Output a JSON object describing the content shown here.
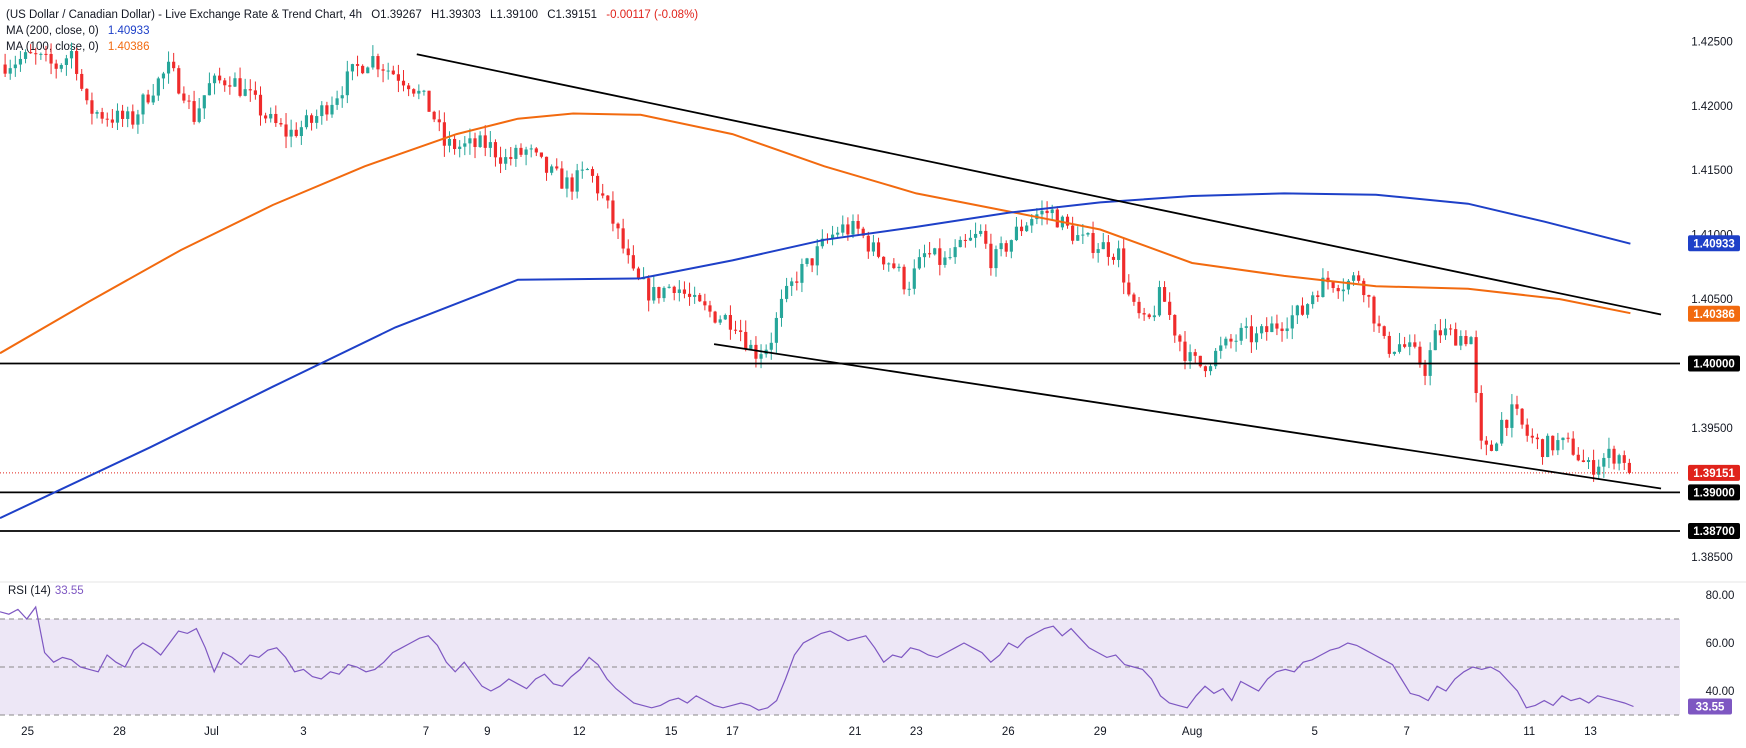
{
  "legend": {
    "symbol": "(US Dollar / Canadian Dollar) - Live Exchange Rate & Trend Chart, 4h",
    "open": "O1.39267",
    "high": "H1.39303",
    "low": "L1.39100",
    "close": "C1.39151",
    "change": "-0.00117 (-0.08%)",
    "ma200_label": "MA (200, close, 0)",
    "ma200_value": "1.40933",
    "ma100_label": "MA (100, close, 0)",
    "ma100_value": "1.40386"
  },
  "rsi_legend": {
    "label": "RSI (14)",
    "value": "33.55"
  },
  "colors": {
    "up": "#26a69a",
    "down": "#ef2b2b",
    "ma200": "#1e40c8",
    "ma100": "#f26a0f",
    "rsi": "#7e57c2",
    "rsi_band": "#ede7f6",
    "trend": "#000000",
    "last_price": "#e0231b"
  },
  "chart_data": {
    "type": "candlestick",
    "y_range": [
      1.3832,
      1.4265
    ],
    "y_ticks": [
      {
        "value": 1.425,
        "label": "1.42500"
      },
      {
        "value": 1.42,
        "label": "1.42000"
      },
      {
        "value": 1.415,
        "label": "1.41500"
      },
      {
        "value": 1.41,
        "label": "1.41000"
      },
      {
        "value": 1.405,
        "label": "1.40500"
      },
      {
        "value": 1.4,
        "label": "1.40000"
      },
      {
        "value": 1.395,
        "label": "1.39500"
      },
      {
        "value": 1.39,
        "label": "1.39000"
      },
      {
        "value": 1.385,
        "label": "1.38500"
      }
    ],
    "x_ticks": [
      {
        "day": 0,
        "label": "25"
      },
      {
        "day": 3,
        "label": "28"
      },
      {
        "day": 6,
        "label": "Jul"
      },
      {
        "day": 9,
        "label": "3"
      },
      {
        "day": 13,
        "label": "7"
      },
      {
        "day": 15,
        "label": "9"
      },
      {
        "day": 18,
        "label": "12"
      },
      {
        "day": 21,
        "label": "15"
      },
      {
        "day": 23,
        "label": "17"
      },
      {
        "day": 27,
        "label": "21"
      },
      {
        "day": 29,
        "label": "23"
      },
      {
        "day": 32,
        "label": "26"
      },
      {
        "day": 35,
        "label": "29"
      },
      {
        "day": 38,
        "label": "Aug"
      },
      {
        "day": 42,
        "label": "5"
      },
      {
        "day": 45,
        "label": "7"
      },
      {
        "day": 49,
        "label": "11"
      },
      {
        "day": 51,
        "label": "13"
      }
    ],
    "x_range_days": [
      -0.9,
      51.7
    ],
    "price_path": [
      [
        -0.9,
        1.4232
      ],
      [
        0.2,
        1.4238
      ],
      [
        0.9,
        1.423
      ],
      [
        1.5,
        1.4243
      ],
      [
        1.9,
        1.4198
      ],
      [
        2.6,
        1.4192
      ],
      [
        3.4,
        1.4188
      ],
      [
        4.0,
        1.4212
      ],
      [
        4.6,
        1.4228
      ],
      [
        5.1,
        1.4212
      ],
      [
        5.4,
        1.419
      ],
      [
        5.9,
        1.4215
      ],
      [
        6.6,
        1.4222
      ],
      [
        7.3,
        1.4205
      ],
      [
        7.9,
        1.4188
      ],
      [
        8.5,
        1.4178
      ],
      [
        9.3,
        1.4188
      ],
      [
        10.1,
        1.421
      ],
      [
        10.7,
        1.4228
      ],
      [
        11.2,
        1.4238
      ],
      [
        11.8,
        1.4228
      ],
      [
        12.5,
        1.4218
      ],
      [
        13.2,
        1.4195
      ],
      [
        13.6,
        1.417
      ],
      [
        14.2,
        1.4168
      ],
      [
        15.0,
        1.417
      ],
      [
        15.6,
        1.4158
      ],
      [
        16.3,
        1.4165
      ],
      [
        17.0,
        1.4148
      ],
      [
        17.7,
        1.4138
      ],
      [
        18.3,
        1.415
      ],
      [
        18.9,
        1.4122
      ],
      [
        19.3,
        1.4098
      ],
      [
        19.8,
        1.4065
      ],
      [
        20.4,
        1.4053
      ],
      [
        21.1,
        1.4062
      ],
      [
        21.8,
        1.4045
      ],
      [
        22.4,
        1.4038
      ],
      [
        23.1,
        1.4033
      ],
      [
        23.7,
        1.4008
      ],
      [
        24.2,
        1.4015
      ],
      [
        24.6,
        1.4045
      ],
      [
        25.1,
        1.4068
      ],
      [
        25.5,
        1.4078
      ],
      [
        26.0,
        1.4093
      ],
      [
        26.5,
        1.4105
      ],
      [
        27.1,
        1.4103
      ],
      [
        27.6,
        1.4088
      ],
      [
        28.2,
        1.4078
      ],
      [
        28.7,
        1.406
      ],
      [
        29.3,
        1.4085
      ],
      [
        29.9,
        1.4078
      ],
      [
        30.5,
        1.409
      ],
      [
        31.1,
        1.41
      ],
      [
        31.5,
        1.4078
      ],
      [
        32.2,
        1.41
      ],
      [
        32.8,
        1.4115
      ],
      [
        33.4,
        1.4118
      ],
      [
        33.9,
        1.4105
      ],
      [
        34.4,
        1.4095
      ],
      [
        35.0,
        1.4092
      ],
      [
        35.6,
        1.4085
      ],
      [
        36.0,
        1.4045
      ],
      [
        36.5,
        1.4028
      ],
      [
        37.0,
        1.4055
      ],
      [
        37.4,
        1.4028
      ],
      [
        37.9,
        1.4003
      ],
      [
        38.3,
        1.3998
      ],
      [
        38.9,
        1.401
      ],
      [
        39.6,
        1.4022
      ],
      [
        40.1,
        1.402
      ],
      [
        40.6,
        1.4028
      ],
      [
        41.1,
        1.4035
      ],
      [
        41.6,
        1.404
      ],
      [
        42.0,
        1.4058
      ],
      [
        42.5,
        1.4065
      ],
      [
        43.0,
        1.4062
      ],
      [
        43.5,
        1.4068
      ],
      [
        43.9,
        1.404
      ],
      [
        44.3,
        1.4012
      ],
      [
        44.8,
        1.4015
      ],
      [
        45.2,
        1.4008
      ],
      [
        45.6,
        1.3996
      ],
      [
        46.0,
        1.4025
      ],
      [
        46.5,
        1.4022
      ],
      [
        47.1,
        1.402
      ],
      [
        47.4,
        1.3935
      ],
      [
        47.7,
        1.393
      ],
      [
        48.1,
        1.3955
      ],
      [
        48.5,
        1.3962
      ],
      [
        48.9,
        1.3945
      ],
      [
        49.4,
        1.3935
      ],
      [
        49.9,
        1.3938
      ],
      [
        50.4,
        1.3935
      ],
      [
        50.9,
        1.3918
      ],
      [
        51.4,
        1.3926
      ],
      [
        51.7,
        1.393
      ],
      [
        52.1,
        1.3927
      ],
      [
        52.4,
        1.3915
      ]
    ],
    "ma200": [
      [
        -0.9,
        1.388
      ],
      [
        4.0,
        1.3935
      ],
      [
        8.0,
        1.3982
      ],
      [
        12.0,
        1.4028
      ],
      [
        16.0,
        1.4065
      ],
      [
        20.0,
        1.4066
      ],
      [
        23.0,
        1.408
      ],
      [
        26.0,
        1.4096
      ],
      [
        29.0,
        1.4106
      ],
      [
        32.0,
        1.4117
      ],
      [
        35.0,
        1.4125
      ],
      [
        38.0,
        1.413
      ],
      [
        41.0,
        1.4132
      ],
      [
        44.0,
        1.4131
      ],
      [
        47.0,
        1.4124
      ],
      [
        49.5,
        1.411
      ],
      [
        52.3,
        1.4093
      ]
    ],
    "ma100": [
      [
        -0.9,
        1.4008
      ],
      [
        2.0,
        1.4048
      ],
      [
        5.0,
        1.4088
      ],
      [
        8.0,
        1.4123
      ],
      [
        11.0,
        1.4153
      ],
      [
        14.0,
        1.4178
      ],
      [
        16.0,
        1.419
      ],
      [
        17.8,
        1.4194
      ],
      [
        20.0,
        1.4193
      ],
      [
        23.0,
        1.4178
      ],
      [
        26.0,
        1.4153
      ],
      [
        29.0,
        1.4132
      ],
      [
        32.0,
        1.4118
      ],
      [
        35.0,
        1.4104
      ],
      [
        38.0,
        1.4078
      ],
      [
        41.0,
        1.4068
      ],
      [
        44.0,
        1.406
      ],
      [
        47.0,
        1.4058
      ],
      [
        50.0,
        1.405
      ],
      [
        52.3,
        1.4039
      ]
    ],
    "trendlines": [
      {
        "from": [
          12.7,
          1.424
        ],
        "to": [
          53.3,
          1.4038
        ]
      },
      {
        "from": [
          22.4,
          1.4015
        ],
        "to": [
          53.3,
          1.3903
        ]
      }
    ],
    "horizontal_levels": [
      {
        "value": 1.4,
        "label": "1.40000"
      },
      {
        "value": 1.39,
        "label": "1.39000"
      },
      {
        "value": 1.387,
        "label": "1.38700"
      }
    ],
    "ma200_badge": {
      "value": 1.40933,
      "label": "1.40933"
    },
    "ma100_badge": {
      "value": 1.40386,
      "label": "1.40386"
    },
    "last_price": {
      "value": 1.39151,
      "label": "1.39151"
    },
    "rsi": {
      "y_range": [
        30,
        85
      ],
      "y_ticks": [
        {
          "value": 80,
          "label": "80.00"
        },
        {
          "value": 60,
          "label": "60.00"
        },
        {
          "value": 40,
          "label": "40.00"
        }
      ],
      "band": [
        30,
        70
      ],
      "midline": 50,
      "value_label": "33.55",
      "values": [
        73,
        72,
        74,
        70,
        75,
        56,
        52,
        54,
        53,
        50,
        49,
        48,
        55,
        52,
        50,
        57,
        60,
        58,
        55,
        60,
        65,
        64,
        66,
        58,
        48,
        56,
        54,
        51,
        55,
        54,
        57,
        58,
        54,
        48,
        49,
        46,
        45,
        48,
        47,
        51,
        50,
        48,
        49,
        52,
        56,
        58,
        60,
        62,
        63,
        59,
        52,
        48,
        52,
        47,
        42,
        40,
        42,
        45,
        43,
        41,
        45,
        47,
        43,
        42,
        46,
        49,
        54,
        51,
        45,
        41,
        38,
        35,
        34,
        33,
        34,
        36,
        37,
        35,
        38,
        36,
        34,
        33,
        34,
        35,
        34,
        32,
        33,
        36,
        45,
        55,
        60,
        62,
        64,
        65,
        63,
        61,
        62,
        63,
        58,
        52,
        55,
        54,
        58,
        57,
        55,
        54,
        56,
        58,
        60,
        58,
        56,
        52,
        55,
        60,
        58,
        62,
        64,
        66,
        67,
        63,
        66,
        62,
        58,
        56,
        54,
        55,
        51,
        50,
        49,
        45,
        38,
        35,
        34,
        33,
        38,
        42,
        39,
        41,
        36,
        44,
        42,
        40,
        45,
        48,
        49,
        48,
        52,
        53,
        55,
        57,
        58,
        60,
        59,
        57,
        55,
        53,
        51,
        45,
        39,
        38,
        36,
        42,
        40,
        45,
        48,
        50,
        49,
        50,
        48,
        44,
        40,
        33,
        34,
        36,
        34,
        38,
        36,
        37,
        35,
        38,
        37,
        36,
        35,
        33.55
      ]
    }
  }
}
